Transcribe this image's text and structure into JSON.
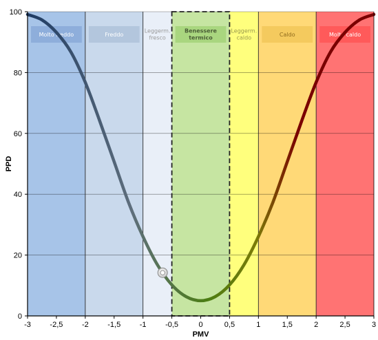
{
  "chart_data": {
    "type": "line",
    "title": "",
    "xlabel": "PMV",
    "ylabel": "PPD",
    "xlim": [
      -3,
      3
    ],
    "ylim": [
      0,
      100
    ],
    "grid": true,
    "x_ticks": [
      -3,
      -2.5,
      -2,
      -1.5,
      -1,
      -0.5,
      0,
      0.5,
      1,
      1.5,
      2,
      2.5,
      3
    ],
    "x_tick_labels": [
      "-3",
      "-2,5",
      "-2",
      "-1,5",
      "-1",
      "-0,5",
      "0",
      "0,5",
      "1",
      "1,5",
      "2",
      "2,5",
      "3"
    ],
    "y_ticks": [
      0,
      20,
      40,
      60,
      80,
      100
    ],
    "y_tick_labels": [
      "0",
      "20",
      "40",
      "60",
      "80",
      "100"
    ],
    "zones": [
      {
        "label": "Molto freddo",
        "from": -3,
        "to": -2,
        "fill": "#a7c4e8",
        "label_bg": "#8eaedb",
        "label_color": "#ffffff",
        "bold": false
      },
      {
        "label": "Freddo",
        "from": -2,
        "to": -1,
        "fill": "#c9d9ec",
        "label_bg": "#b3c6dd",
        "label_color": "#ffffff",
        "bold": false
      },
      {
        "label": "Leggerm. fresco",
        "from": -1,
        "to": -0.5,
        "fill": "#e9eff8",
        "label_bg": "#e9eff8",
        "label_color": "#9a9a9a",
        "bold": false
      },
      {
        "label": "Benessere termico",
        "from": -0.5,
        "to": 0.5,
        "fill": "#c6e5a2",
        "label_bg": "#a9d67f",
        "label_color": "#4a5e36",
        "bold": true
      },
      {
        "label": "Leggerm. caldo",
        "from": 0.5,
        "to": 1,
        "fill": "#ffff7d",
        "label_bg": "#ffff7d",
        "label_color": "#9a9a4e",
        "bold": false
      },
      {
        "label": "Caldo",
        "from": 1,
        "to": 2,
        "fill": "#ffd977",
        "label_bg": "#f4ca5e",
        "label_color": "#8e6a1c",
        "bold": false
      },
      {
        "label": "Molto caldo",
        "from": 2,
        "to": 3,
        "fill": "#ff7373",
        "label_bg": "#ff5a5a",
        "label_color": "#ffffff",
        "bold": false
      }
    ],
    "series": [
      {
        "x": [
          -3,
          -2.75,
          -2.5,
          -2.25,
          -2,
          -1.75,
          -1.5,
          -1.25,
          -1,
          -0.75,
          -0.5,
          -0.25,
          0,
          0.25,
          0.5,
          0.75,
          1,
          1.25,
          1.5,
          1.75,
          2,
          2.25,
          2.5,
          2.75,
          3
        ],
        "y": [
          99.1,
          97.3,
          93.2,
          86.8,
          76.8,
          64.1,
          50.7,
          37.3,
          26.1,
          16.8,
          10.2,
          6.3,
          5.0,
          6.3,
          10.2,
          16.8,
          26.1,
          37.3,
          50.7,
          64.1,
          76.8,
          86.8,
          93.2,
          97.3,
          99.1
        ]
      }
    ],
    "marker": {
      "x": -0.66,
      "y": 14.2
    },
    "colors": {
      "curve_dark": "#1d3a63",
      "curve_mid": "#5e6e7c",
      "curve_green": "#4b7d12",
      "curve_olive": "#7b7b08",
      "curve_red": "#7a0000",
      "grid": "#000000",
      "comfort_border": "#222222"
    }
  }
}
